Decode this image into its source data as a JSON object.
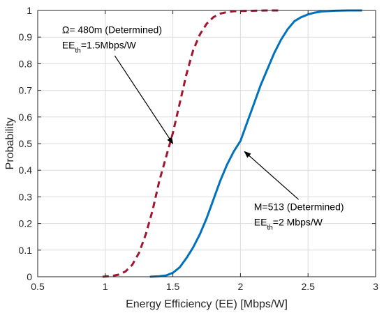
{
  "chart_data": {
    "type": "line",
    "title": "",
    "xlabel": "Energy Efficiency (EE) [Mbps/W]",
    "ylabel": "Probability",
    "xlim": [
      0.5,
      3
    ],
    "ylim": [
      0,
      1
    ],
    "xticks": [
      "0.5",
      "1",
      "1.5",
      "2",
      "2.5",
      "3"
    ],
    "yticks": [
      "0",
      "0.1",
      "0.2",
      "0.3",
      "0.4",
      "0.5",
      "0.6",
      "0.7",
      "0.8",
      "0.9",
      "1"
    ],
    "grid": true,
    "series": [
      {
        "style": "dashed",
        "color": "#a2142f",
        "x": [
          0.98,
          1.05,
          1.1,
          1.15,
          1.2,
          1.25,
          1.3,
          1.35,
          1.4,
          1.45,
          1.5,
          1.55,
          1.6,
          1.65,
          1.7,
          1.75,
          1.8,
          1.85,
          1.9,
          1.95,
          2.0,
          2.1,
          2.2,
          2.28
        ],
        "y": [
          0.0,
          0.003,
          0.008,
          0.02,
          0.045,
          0.09,
          0.16,
          0.25,
          0.36,
          0.45,
          0.54,
          0.65,
          0.76,
          0.85,
          0.91,
          0.95,
          0.975,
          0.988,
          0.994,
          0.997,
          0.998,
          0.999,
          1.0,
          1.0
        ]
      },
      {
        "style": "solid",
        "color": "#0072bd",
        "x": [
          1.33,
          1.4,
          1.45,
          1.5,
          1.55,
          1.6,
          1.65,
          1.7,
          1.75,
          1.8,
          1.85,
          1.9,
          1.95,
          2.0,
          2.05,
          2.1,
          2.15,
          2.2,
          2.25,
          2.3,
          2.35,
          2.4,
          2.45,
          2.5,
          2.55,
          2.6,
          2.7,
          2.8,
          2.9
        ],
        "y": [
          0.0,
          0.002,
          0.005,
          0.015,
          0.035,
          0.07,
          0.11,
          0.16,
          0.22,
          0.29,
          0.36,
          0.42,
          0.47,
          0.51,
          0.58,
          0.65,
          0.72,
          0.78,
          0.84,
          0.89,
          0.93,
          0.96,
          0.975,
          0.985,
          0.992,
          0.996,
          0.999,
          1.0,
          1.0
        ]
      }
    ],
    "annotations": [
      {
        "line1_pre": "Ω",
        "line1": "= 480m (Determined)",
        "line2_main": "EE",
        "line2_sub": "th",
        "line2_rest": "=1.5Mbps/W",
        "point": [
          1.5,
          0.5
        ],
        "text_anchor": [
          0.68,
          0.915
        ],
        "arrow_from": [
          1.07,
          0.83
        ]
      },
      {
        "line1": "M=513 (Determined)",
        "line2_main": "EE",
        "line2_sub": "th",
        "line2_rest": "=2 Mbps/W",
        "point": [
          2.03,
          0.47
        ],
        "text_anchor": [
          2.1,
          0.25
        ],
        "arrow_from": [
          2.43,
          0.29
        ]
      }
    ]
  }
}
